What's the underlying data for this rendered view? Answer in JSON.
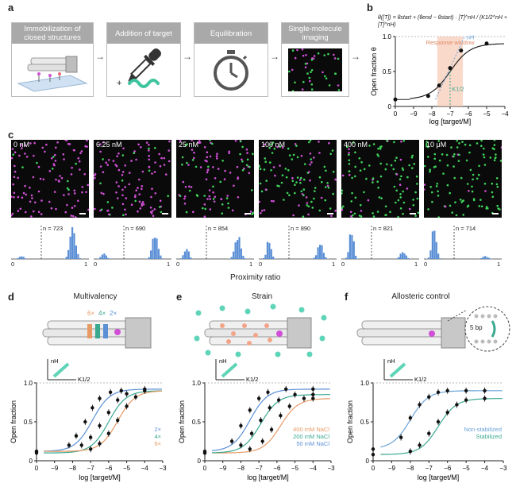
{
  "panels": {
    "a": {
      "label": "a",
      "steps": [
        {
          "title": "Immobilization of closed structures",
          "icon": "dna-origami-surface-icon"
        },
        {
          "title": "Addition of target",
          "icon": "pipette-icon"
        },
        {
          "title": "Equilibration",
          "icon": "stopwatch-icon"
        },
        {
          "title": "Single-molecule imaging",
          "icon": "microscopy-image-icon"
        }
      ],
      "plus": "+"
    },
    "b": {
      "label": "b",
      "equation": "θ([T]) = θstart + (θend − θstart) · [T]^nH / (K1/2^nH + [T]^nH)",
      "response_window": "Response window",
      "nH_label": "nH",
      "k_label": "K1/2",
      "ylabel": "Open fraction θ",
      "xlabel": "log [target/M]",
      "xticks": [
        "0",
        "−9",
        "−8",
        "−7",
        "−6",
        "−5",
        "−4"
      ],
      "yticks": [
        "0",
        "0.5",
        "1.0"
      ]
    },
    "c": {
      "label": "c",
      "images": [
        {
          "conc": "0 nM",
          "n": "n = 723"
        },
        {
          "conc": "6.25 nM",
          "n": "n = 690"
        },
        {
          "conc": "25 nM",
          "n": "n = 854"
        },
        {
          "conc": "100 nM",
          "n": "n = 890"
        },
        {
          "conc": "400 nM",
          "n": "n = 821"
        },
        {
          "conc": "10 μM",
          "n": "n = 714"
        }
      ],
      "tick0": "0",
      "tick1": "1",
      "xlabel": "Proximity ratio"
    },
    "d": {
      "label": "d",
      "title": "Multivalency",
      "valency": [
        "6×",
        "4×",
        "2×"
      ],
      "legend": [
        "2×",
        "4×",
        "6×"
      ],
      "legend_colors": [
        "#5b8fd6",
        "#3aa88f",
        "#e79a66"
      ],
      "ylabel": "Open fraction",
      "xlabel": "log [target/M]",
      "nH": "nH",
      "k": "K1/2"
    },
    "e": {
      "label": "e",
      "title": "Strain",
      "legend": [
        "400 mM NaCl",
        "200 mM NaCl",
        "50 mM NaCl"
      ],
      "legend_colors": [
        "#e79a66",
        "#3aa88f",
        "#5b8fd6"
      ],
      "ylabel": "Open fraction",
      "xlabel": "log [target/M]",
      "nH": "nH",
      "k": "K1/2"
    },
    "f": {
      "label": "f",
      "title": "Allosteric control",
      "bp": "5 bp",
      "legend": [
        "Non-stabilized",
        "Stabilized"
      ],
      "legend_colors": [
        "#6aa3d8",
        "#3aa88f"
      ],
      "ylabel": "Open fraction",
      "xlabel": "log [target/M]",
      "nH": "nH",
      "k": "K1/2"
    },
    "chart_common": {
      "xticks": [
        "0",
        "−9",
        "−8",
        "−7",
        "−6",
        "−5",
        "−4",
        "−3"
      ],
      "yticks": [
        "0",
        "0.5",
        "1.0"
      ]
    }
  },
  "colors": {
    "magenta": "#d04fd6",
    "green": "#3fd45a",
    "blue": "#5b8fd6",
    "teal": "#5fd4b8",
    "salmon": "#f6c9b4"
  },
  "chart_data": [
    {
      "type": "scatter",
      "panel": "b",
      "xlabel": "log [target/M]",
      "ylabel": "Open fraction θ",
      "xlim": [
        -10,
        -4
      ],
      "ylim": [
        0,
        1.0
      ],
      "x": [
        -10,
        -8.2,
        -7.6,
        -7.0,
        -6.4,
        -5.0
      ],
      "y": [
        0.1,
        0.15,
        0.3,
        0.55,
        0.8,
        0.9
      ],
      "fit": {
        "start": 0.1,
        "end": 0.9,
        "k": -7.0
      }
    },
    {
      "type": "scatter",
      "panel": "d",
      "xlabel": "log [target/M]",
      "ylabel": "Open fraction",
      "xlim": [
        -10,
        -3
      ],
      "ylim": [
        0,
        1.0
      ],
      "series": [
        {
          "name": "2×",
          "x": [
            -10,
            -8.2,
            -7.8,
            -7.3,
            -6.9,
            -6.5,
            -5.9,
            -5.3,
            -4.0
          ],
          "y": [
            0.12,
            0.2,
            0.32,
            0.5,
            0.68,
            0.8,
            0.88,
            0.9,
            0.92
          ]
        },
        {
          "name": "4×",
          "x": [
            -10,
            -7.5,
            -7.0,
            -6.5,
            -6.0,
            -5.5,
            -5.0,
            -4.0
          ],
          "y": [
            0.1,
            0.2,
            0.3,
            0.45,
            0.62,
            0.78,
            0.86,
            0.9
          ]
        },
        {
          "name": "6×",
          "x": [
            -10,
            -7.0,
            -6.5,
            -6.0,
            -5.5,
            -5.0,
            -4.5,
            -4.0
          ],
          "y": [
            0.12,
            0.15,
            0.22,
            0.35,
            0.52,
            0.7,
            0.82,
            0.9
          ]
        }
      ]
    },
    {
      "type": "scatter",
      "panel": "e",
      "xlabel": "log [target/M]",
      "ylabel": "Open fraction",
      "xlim": [
        -10,
        -3
      ],
      "ylim": [
        0,
        1.0
      ],
      "series": [
        {
          "name": "400 mM NaCl",
          "x": [
            -10,
            -7.5,
            -6.8,
            -6.3,
            -5.8,
            -5.3,
            -4.5,
            -4.0
          ],
          "y": [
            0.1,
            0.15,
            0.25,
            0.4,
            0.58,
            0.7,
            0.8,
            0.8
          ]
        },
        {
          "name": "200 mM NaCl",
          "x": [
            -10,
            -8.0,
            -7.4,
            -6.9,
            -6.4,
            -5.9,
            -5.0,
            -4.0
          ],
          "y": [
            0.1,
            0.2,
            0.35,
            0.52,
            0.68,
            0.78,
            0.85,
            0.85
          ]
        },
        {
          "name": "50 mM NaCl",
          "x": [
            -10,
            -8.5,
            -8.0,
            -7.5,
            -7.0,
            -6.5,
            -5.5,
            -4.0
          ],
          "y": [
            0.12,
            0.25,
            0.45,
            0.65,
            0.8,
            0.88,
            0.92,
            0.92
          ]
        }
      ]
    },
    {
      "type": "scatter",
      "panel": "f",
      "xlabel": "log [target/M]",
      "ylabel": "Open fraction",
      "xlim": [
        -10,
        -3
      ],
      "ylim": [
        0,
        1.0
      ],
      "series": [
        {
          "name": "Non-stabilized",
          "x": [
            -10,
            -8.5,
            -8.0,
            -7.5,
            -7.0,
            -6.5,
            -6.0,
            -5.0,
            -4.0
          ],
          "y": [
            0.15,
            0.3,
            0.55,
            0.72,
            0.82,
            0.88,
            0.9,
            0.9,
            0.9
          ]
        },
        {
          "name": "Stabilized",
          "x": [
            -10,
            -8.0,
            -7.5,
            -7.0,
            -6.5,
            -6.0,
            -5.5,
            -5.0,
            -4.0
          ],
          "y": [
            0.08,
            0.12,
            0.2,
            0.35,
            0.5,
            0.62,
            0.72,
            0.78,
            0.8
          ]
        }
      ]
    }
  ]
}
